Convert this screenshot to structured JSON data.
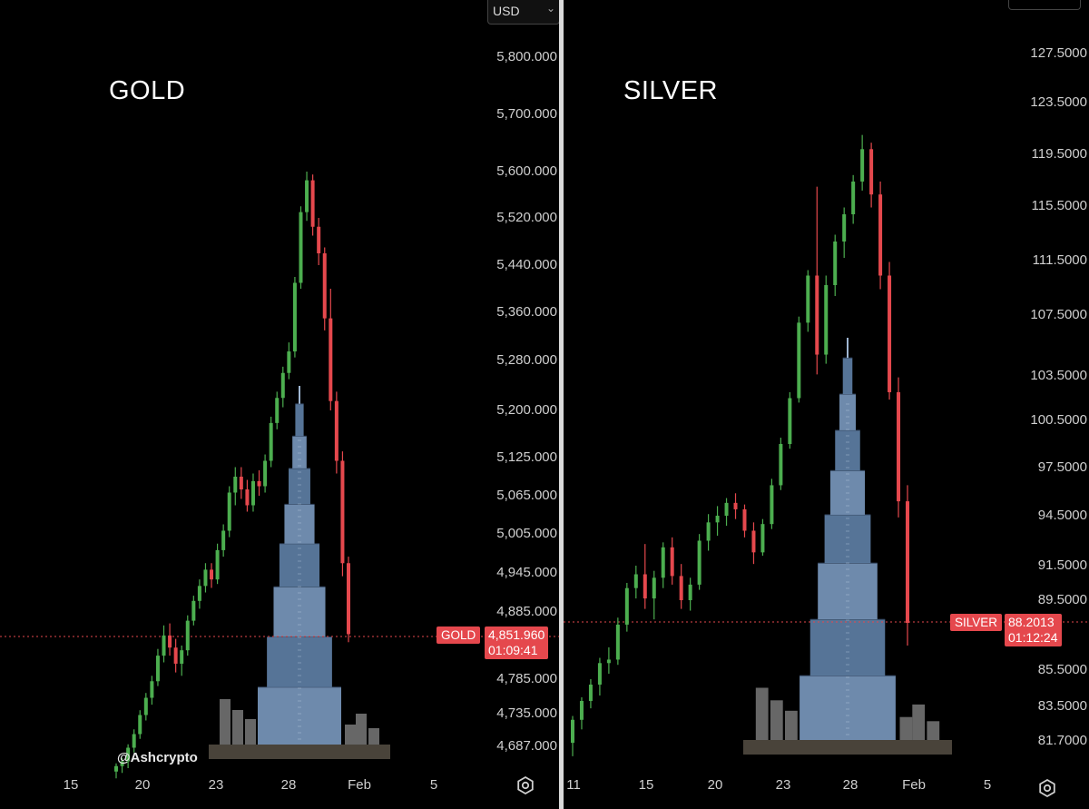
{
  "colors": {
    "up": "#4cae4f",
    "down": "#e5484d",
    "background": "#000000",
    "text": "#cfcfcf",
    "tower": "#6f8fb3"
  },
  "gold": {
    "title": "GOLD",
    "currency": "USD",
    "current_price": "4,851.960",
    "countdown": "01:09:41",
    "symbol_tag": "GOLD",
    "watermark": "@Ashcrypto",
    "y_ticks": [
      "5,800.000",
      "5,700.000",
      "5,600.000",
      "5,520.000",
      "5,440.000",
      "5,360.000",
      "5,280.000",
      "5,200.000",
      "5,125.000",
      "5,065.000",
      "5,005.000",
      "4,945.000",
      "4,885.000",
      "4,785.000",
      "4,735.000",
      "4,687.000"
    ],
    "x_ticks": [
      "15",
      "20",
      "23",
      "28",
      "Feb",
      "5"
    ]
  },
  "silver": {
    "title": "SILVER",
    "current_price": "88.2013",
    "countdown": "01:12:24",
    "symbol_tag": "SILVER",
    "y_ticks": [
      "127.5000",
      "123.5000",
      "119.5000",
      "115.5000",
      "111.5000",
      "107.5000",
      "103.5000",
      "100.5000",
      "97.5000",
      "94.5000",
      "91.5000",
      "89.5000",
      "85.5000",
      "83.5000",
      "81.7000"
    ],
    "x_ticks": [
      "11",
      "15",
      "20",
      "23",
      "28",
      "Feb",
      "5"
    ]
  },
  "chart_data": [
    {
      "type": "candlestick",
      "title": "GOLD",
      "currency": "USD",
      "candles": [
        {
          "o": 4650,
          "h": 4662,
          "l": 4640,
          "c": 4658
        },
        {
          "o": 4658,
          "h": 4670,
          "l": 4648,
          "c": 4665
        },
        {
          "o": 4665,
          "h": 4690,
          "l": 4655,
          "c": 4685
        },
        {
          "o": 4685,
          "h": 4712,
          "l": 4678,
          "c": 4705
        },
        {
          "o": 4705,
          "h": 4740,
          "l": 4698,
          "c": 4733
        },
        {
          "o": 4733,
          "h": 4765,
          "l": 4725,
          "c": 4758
        },
        {
          "o": 4758,
          "h": 4790,
          "l": 4748,
          "c": 4782
        },
        {
          "o": 4782,
          "h": 4830,
          "l": 4775,
          "c": 4820
        },
        {
          "o": 4820,
          "h": 4865,
          "l": 4810,
          "c": 4850
        },
        {
          "o": 4850,
          "h": 4868,
          "l": 4820,
          "c": 4832
        },
        {
          "o": 4832,
          "h": 4845,
          "l": 4795,
          "c": 4808
        },
        {
          "o": 4808,
          "h": 4835,
          "l": 4790,
          "c": 4828
        },
        {
          "o": 4828,
          "h": 4880,
          "l": 4820,
          "c": 4872
        },
        {
          "o": 4872,
          "h": 4910,
          "l": 4865,
          "c": 4902
        },
        {
          "o": 4902,
          "h": 4935,
          "l": 4890,
          "c": 4925
        },
        {
          "o": 4925,
          "h": 4960,
          "l": 4915,
          "c": 4950
        },
        {
          "o": 4950,
          "h": 4960,
          "l": 4922,
          "c": 4935
        },
        {
          "o": 4935,
          "h": 4990,
          "l": 4928,
          "c": 4980
        },
        {
          "o": 4980,
          "h": 5020,
          "l": 4970,
          "c": 5010
        },
        {
          "o": 5010,
          "h": 5080,
          "l": 5000,
          "c": 5070
        },
        {
          "o": 5070,
          "h": 5110,
          "l": 5050,
          "c": 5095
        },
        {
          "o": 5095,
          "h": 5110,
          "l": 5060,
          "c": 5075
        },
        {
          "o": 5075,
          "h": 5090,
          "l": 5040,
          "c": 5050
        },
        {
          "o": 5050,
          "h": 5100,
          "l": 5040,
          "c": 5088
        },
        {
          "o": 5088,
          "h": 5105,
          "l": 5065,
          "c": 5080
        },
        {
          "o": 5080,
          "h": 5130,
          "l": 5070,
          "c": 5120
        },
        {
          "o": 5120,
          "h": 5190,
          "l": 5110,
          "c": 5180
        },
        {
          "o": 5180,
          "h": 5230,
          "l": 5170,
          "c": 5220
        },
        {
          "o": 5220,
          "h": 5270,
          "l": 5205,
          "c": 5260
        },
        {
          "o": 5260,
          "h": 5310,
          "l": 5250,
          "c": 5295
        },
        {
          "o": 5295,
          "h": 5420,
          "l": 5285,
          "c": 5410
        },
        {
          "o": 5410,
          "h": 5540,
          "l": 5400,
          "c": 5530
        },
        {
          "o": 5530,
          "h": 5600,
          "l": 5515,
          "c": 5585
        },
        {
          "o": 5585,
          "h": 5595,
          "l": 5490,
          "c": 5505
        },
        {
          "o": 5505,
          "h": 5520,
          "l": 5440,
          "c": 5460
        },
        {
          "o": 5460,
          "h": 5470,
          "l": 5330,
          "c": 5350
        },
        {
          "o": 5350,
          "h": 5400,
          "l": 5200,
          "c": 5215
        },
        {
          "o": 5215,
          "h": 5230,
          "l": 5100,
          "c": 5120
        },
        {
          "o": 5120,
          "h": 5135,
          "l": 4940,
          "c": 4960
        },
        {
          "o": 4960,
          "h": 4970,
          "l": 4840,
          "c": 4852
        }
      ],
      "x_ticks": [
        "15",
        "20",
        "23",
        "28",
        "Feb",
        "5"
      ],
      "ylim": [
        4640,
        5840
      ],
      "last_price": 4851.96
    },
    {
      "type": "candlestick",
      "title": "SILVER",
      "candles": [
        {
          "o": 81.6,
          "h": 83.0,
          "l": 80.9,
          "c": 82.8
        },
        {
          "o": 82.8,
          "h": 84.0,
          "l": 82.3,
          "c": 83.8
        },
        {
          "o": 83.8,
          "h": 85.0,
          "l": 83.4,
          "c": 84.7
        },
        {
          "o": 84.7,
          "h": 86.2,
          "l": 84.1,
          "c": 85.9
        },
        {
          "o": 85.9,
          "h": 86.8,
          "l": 85.3,
          "c": 86.1
        },
        {
          "o": 86.1,
          "h": 88.5,
          "l": 85.8,
          "c": 88.1
        },
        {
          "o": 88.1,
          "h": 90.5,
          "l": 87.7,
          "c": 90.2
        },
        {
          "o": 90.2,
          "h": 91.5,
          "l": 89.6,
          "c": 91.0
        },
        {
          "o": 91.0,
          "h": 92.8,
          "l": 89.0,
          "c": 89.6
        },
        {
          "o": 89.6,
          "h": 91.2,
          "l": 88.4,
          "c": 90.8
        },
        {
          "o": 90.8,
          "h": 92.9,
          "l": 90.2,
          "c": 92.6
        },
        {
          "o": 92.6,
          "h": 93.2,
          "l": 90.4,
          "c": 90.9
        },
        {
          "o": 90.9,
          "h": 91.6,
          "l": 89.0,
          "c": 89.5
        },
        {
          "o": 89.5,
          "h": 90.8,
          "l": 88.9,
          "c": 90.4
        },
        {
          "o": 90.4,
          "h": 93.4,
          "l": 90.1,
          "c": 93.0
        },
        {
          "o": 93.0,
          "h": 94.6,
          "l": 92.4,
          "c": 94.1
        },
        {
          "o": 94.1,
          "h": 95.1,
          "l": 93.3,
          "c": 94.5
        },
        {
          "o": 94.5,
          "h": 95.6,
          "l": 93.9,
          "c": 95.3
        },
        {
          "o": 95.3,
          "h": 95.9,
          "l": 94.3,
          "c": 94.9
        },
        {
          "o": 94.9,
          "h": 95.2,
          "l": 93.2,
          "c": 93.6
        },
        {
          "o": 93.6,
          "h": 94.1,
          "l": 91.6,
          "c": 92.3
        },
        {
          "o": 92.3,
          "h": 94.3,
          "l": 92.1,
          "c": 94.0
        },
        {
          "o": 94.0,
          "h": 96.8,
          "l": 93.7,
          "c": 96.4
        },
        {
          "o": 96.4,
          "h": 99.4,
          "l": 96.1,
          "c": 99.0
        },
        {
          "o": 99.0,
          "h": 102.4,
          "l": 98.7,
          "c": 102.0
        },
        {
          "o": 102.0,
          "h": 107.4,
          "l": 101.7,
          "c": 107.0
        },
        {
          "o": 107.0,
          "h": 110.8,
          "l": 106.4,
          "c": 110.4
        },
        {
          "o": 110.4,
          "h": 117.0,
          "l": 103.6,
          "c": 104.9
        },
        {
          "o": 104.9,
          "h": 110.4,
          "l": 104.3,
          "c": 109.7
        },
        {
          "o": 109.7,
          "h": 113.4,
          "l": 108.9,
          "c": 112.9
        },
        {
          "o": 112.9,
          "h": 115.4,
          "l": 111.7,
          "c": 114.9
        },
        {
          "o": 114.9,
          "h": 117.9,
          "l": 114.2,
          "c": 117.4
        },
        {
          "o": 117.4,
          "h": 121.0,
          "l": 116.7,
          "c": 119.9
        },
        {
          "o": 119.9,
          "h": 120.4,
          "l": 115.4,
          "c": 116.4
        },
        {
          "o": 116.4,
          "h": 117.4,
          "l": 109.4,
          "c": 110.4
        },
        {
          "o": 110.4,
          "h": 111.4,
          "l": 101.9,
          "c": 102.4
        },
        {
          "o": 102.4,
          "h": 103.4,
          "l": 94.4,
          "c": 95.4
        },
        {
          "o": 95.4,
          "h": 96.4,
          "l": 86.9,
          "c": 88.2
        }
      ],
      "x_ticks": [
        "11",
        "15",
        "20",
        "23",
        "28",
        "Feb",
        "5"
      ],
      "ylim": [
        80.5,
        129.5
      ],
      "scale": "log",
      "last_price": 88.2013
    }
  ]
}
